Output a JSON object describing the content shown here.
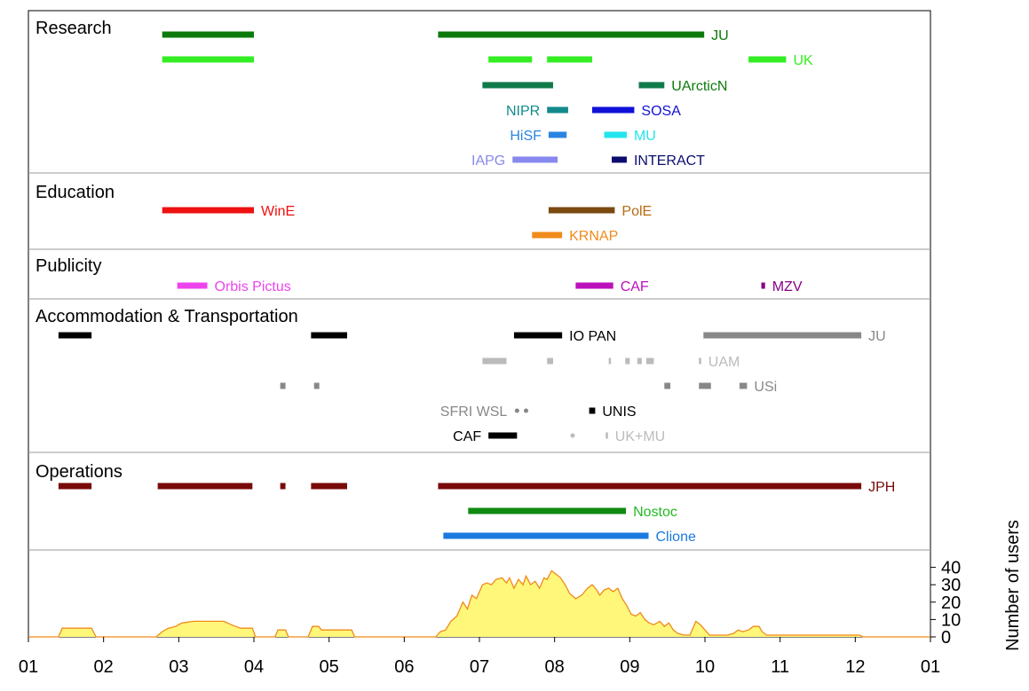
{
  "chart_data": {
    "type": "timeline",
    "x_axis": {
      "tick_labels": [
        "01",
        "02",
        "03",
        "04",
        "05",
        "06",
        "07",
        "08",
        "09",
        "10",
        "11",
        "12",
        "01"
      ]
    },
    "sections": [
      {
        "id": "research",
        "title": "Research",
        "bars": [
          {
            "label": "JU",
            "color": "#0b7a0b",
            "row": 0,
            "segments": [
              [
                2.78,
                4.0
              ],
              [
                6.45,
                9.99
              ]
            ]
          },
          {
            "label": "UK",
            "color": "#33ee22",
            "row": 1,
            "segments": [
              [
                2.78,
                4.0
              ],
              [
                7.12,
                7.7
              ],
              [
                7.9,
                8.5
              ],
              [
                10.58,
                11.08
              ]
            ]
          },
          {
            "label": "UArcticN",
            "color": "#0b7a0b",
            "bar_color": "#0f7a4a",
            "row": 2,
            "segments": [
              [
                7.04,
                7.98
              ],
              [
                9.12,
                9.46
              ]
            ]
          },
          {
            "label": "NIPR",
            "color": "#138a8a",
            "row": 3,
            "label_side": "left",
            "segments": [
              [
                7.9,
                8.18
              ]
            ]
          },
          {
            "label": "SOSA",
            "color": "#1010d8",
            "row": 3,
            "segments": [
              [
                8.5,
                9.06
              ]
            ]
          },
          {
            "label": "HiSF",
            "color": "#2a84e0",
            "row": 4,
            "label_side": "left",
            "segments": [
              [
                7.92,
                8.16
              ]
            ]
          },
          {
            "label": "MU",
            "color": "#22e5ee",
            "row": 4,
            "segments": [
              [
                8.66,
                8.96
              ]
            ]
          },
          {
            "label": "IAPG",
            "color": "#8888ee",
            "row": 5,
            "label_side": "left",
            "segments": [
              [
                7.44,
                8.04
              ]
            ]
          },
          {
            "label": "INTERACT",
            "color": "#0c0c6e",
            "row": 5,
            "segments": [
              [
                8.76,
                8.96
              ]
            ]
          }
        ]
      },
      {
        "id": "education",
        "title": "Education",
        "bars": [
          {
            "label": "WinE",
            "color": "#ee1111",
            "row": 0,
            "segments": [
              [
                2.78,
                4.0
              ]
            ]
          },
          {
            "label": "PolE",
            "color": "#7a4a10",
            "label_color": "#b86a10",
            "row": 0,
            "segments": [
              [
                7.92,
                8.8
              ]
            ]
          },
          {
            "label": "KRNAP",
            "color": "#f08a1a",
            "row": 1,
            "segments": [
              [
                7.7,
                8.1
              ]
            ]
          }
        ]
      },
      {
        "id": "publicity",
        "title": "Publicity",
        "bars": [
          {
            "label": "Orbis Pictus",
            "color": "#ee44ee",
            "row": 0,
            "segments": [
              [
                2.98,
                3.38
              ]
            ]
          },
          {
            "label": "CAF",
            "color": "#bb11bb",
            "row": 0,
            "segments": [
              [
                8.28,
                8.78
              ]
            ]
          },
          {
            "label": "MZV",
            "color": "#880088",
            "row": 0,
            "segments": [
              [
                10.75,
                10.8
              ]
            ]
          }
        ]
      },
      {
        "id": "accommodation",
        "title": "Accommodation & Transportation",
        "bars": [
          {
            "label": "",
            "color": "#000000",
            "row": 0,
            "segments": [
              [
                1.4,
                1.84
              ],
              [
                4.76,
                5.24
              ]
            ]
          },
          {
            "label": "IO PAN",
            "color": "#000000",
            "row": 0,
            "segments": [
              [
                7.46,
                8.1
              ]
            ]
          },
          {
            "label": "JU",
            "color": "#888888",
            "row": 0,
            "segments": [
              [
                9.98,
                12.08
              ]
            ]
          },
          {
            "label": "UAM",
            "color": "#bbbbbb",
            "row": 1,
            "segments": [
              [
                7.04,
                7.36
              ],
              [
                7.9,
                7.98
              ],
              [
                8.72,
                8.75
              ],
              [
                8.94,
                9.0
              ],
              [
                9.1,
                9.16
              ],
              [
                9.22,
                9.32
              ],
              [
                9.92,
                9.95
              ]
            ]
          },
          {
            "label": "USi",
            "color": "#888888",
            "row": 2,
            "segments": [
              [
                4.35,
                4.42
              ],
              [
                4.8,
                4.87
              ],
              [
                9.46,
                9.54
              ],
              [
                9.92,
                10.08
              ],
              [
                10.46,
                10.56
              ]
            ]
          },
          {
            "label": "SFRI WSL",
            "color": "#888888",
            "row": 3,
            "label_side": "left",
            "dots": [
              7.5,
              7.62
            ]
          },
          {
            "label": "UNIS",
            "color": "#000000",
            "row": 3,
            "segments": [
              [
                8.46,
                8.54
              ]
            ]
          },
          {
            "label": "CAF",
            "color": "#000000",
            "row": 4,
            "label_side": "left",
            "segments": [
              [
                7.12,
                7.5
              ]
            ]
          },
          {
            "label": "UK+MU",
            "color": "#bbbbbb",
            "row": 4,
            "dots": [
              8.24
            ],
            "segments": [
              [
                8.68,
                8.71
              ]
            ]
          }
        ]
      },
      {
        "id": "operations",
        "title": "Operations",
        "bars": [
          {
            "label": "JPH",
            "color": "#7a0a0a",
            "row": 0,
            "segments": [
              [
                1.4,
                1.84
              ],
              [
                2.72,
                3.98
              ],
              [
                4.35,
                4.42
              ],
              [
                4.76,
                5.24
              ],
              [
                6.45,
                12.08
              ]
            ]
          },
          {
            "label": "Nostoc",
            "color": "#108a10",
            "label_color": "#22bb22",
            "row": 1,
            "segments": [
              [
                6.85,
                8.95
              ]
            ]
          },
          {
            "label": "Clione",
            "color": "#1a7ae0",
            "row": 2,
            "segments": [
              [
                6.52,
                9.25
              ]
            ]
          }
        ]
      }
    ],
    "users": {
      "ylabel": "Number of users",
      "y_ticks": [
        0,
        10,
        20,
        30,
        40
      ],
      "ylim": [
        0,
        50
      ],
      "fill_color": "#fff77a",
      "line_color": "#f08a1a",
      "points": [
        [
          1.0,
          0
        ],
        [
          1.4,
          0
        ],
        [
          1.45,
          5
        ],
        [
          1.84,
          5
        ],
        [
          1.9,
          0
        ],
        [
          2.7,
          0
        ],
        [
          2.78,
          3
        ],
        [
          2.86,
          5
        ],
        [
          2.96,
          6
        ],
        [
          3.04,
          8
        ],
        [
          3.2,
          9
        ],
        [
          3.6,
          9
        ],
        [
          3.7,
          7
        ],
        [
          3.82,
          5
        ],
        [
          3.98,
          5
        ],
        [
          4.02,
          0
        ],
        [
          4.28,
          0
        ],
        [
          4.32,
          4
        ],
        [
          4.42,
          4
        ],
        [
          4.46,
          0
        ],
        [
          4.72,
          0
        ],
        [
          4.78,
          6
        ],
        [
          4.86,
          6
        ],
        [
          4.9,
          4
        ],
        [
          5.3,
          4
        ],
        [
          5.34,
          0
        ],
        [
          6.42,
          0
        ],
        [
          6.48,
          3
        ],
        [
          6.55,
          4
        ],
        [
          6.62,
          9
        ],
        [
          6.7,
          12
        ],
        [
          6.78,
          20
        ],
        [
          6.84,
          16
        ],
        [
          6.9,
          24
        ],
        [
          6.96,
          22
        ],
        [
          7.04,
          30
        ],
        [
          7.1,
          31
        ],
        [
          7.16,
          30
        ],
        [
          7.22,
          33
        ],
        [
          7.3,
          34
        ],
        [
          7.36,
          31
        ],
        [
          7.4,
          34
        ],
        [
          7.46,
          28
        ],
        [
          7.52,
          33
        ],
        [
          7.58,
          30
        ],
        [
          7.62,
          35
        ],
        [
          7.68,
          30
        ],
        [
          7.74,
          32
        ],
        [
          7.8,
          28
        ],
        [
          7.86,
          34
        ],
        [
          7.9,
          33
        ],
        [
          7.96,
          38
        ],
        [
          8.02,
          36
        ],
        [
          8.08,
          34
        ],
        [
          8.14,
          30
        ],
        [
          8.2,
          25
        ],
        [
          8.28,
          22
        ],
        [
          8.36,
          24
        ],
        [
          8.44,
          28
        ],
        [
          8.5,
          30
        ],
        [
          8.56,
          27
        ],
        [
          8.6,
          24
        ],
        [
          8.66,
          27
        ],
        [
          8.72,
          28
        ],
        [
          8.78,
          26
        ],
        [
          8.84,
          28
        ],
        [
          8.9,
          22
        ],
        [
          8.96,
          18
        ],
        [
          9.02,
          13
        ],
        [
          9.08,
          12
        ],
        [
          9.14,
          14
        ],
        [
          9.2,
          10
        ],
        [
          9.26,
          8
        ],
        [
          9.32,
          7
        ],
        [
          9.4,
          9
        ],
        [
          9.46,
          6
        ],
        [
          9.52,
          8
        ],
        [
          9.58,
          4
        ],
        [
          9.64,
          2
        ],
        [
          9.72,
          1
        ],
        [
          9.8,
          1
        ],
        [
          9.88,
          9
        ],
        [
          9.94,
          7
        ],
        [
          10.0,
          4
        ],
        [
          10.06,
          1
        ],
        [
          10.3,
          1
        ],
        [
          10.38,
          2
        ],
        [
          10.44,
          4
        ],
        [
          10.5,
          3
        ],
        [
          10.58,
          4
        ],
        [
          10.64,
          6
        ],
        [
          10.72,
          6
        ],
        [
          10.76,
          3
        ],
        [
          10.82,
          1
        ],
        [
          12.06,
          1
        ],
        [
          12.1,
          0
        ],
        [
          13.0,
          0
        ]
      ]
    }
  }
}
